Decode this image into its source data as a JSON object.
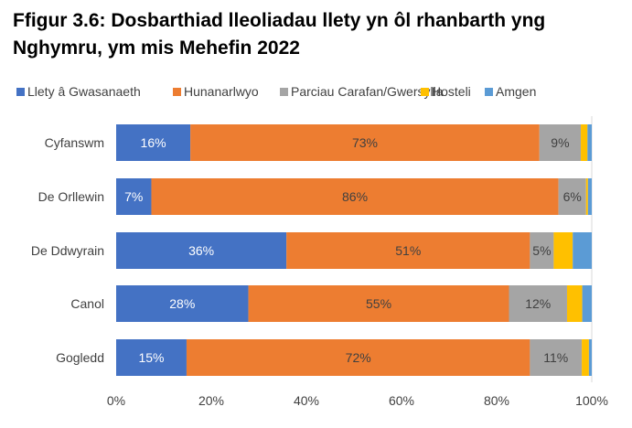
{
  "chart_data": {
    "type": "bar",
    "stacked": true,
    "orientation": "horizontal",
    "title": "Ffigur 3.6: Dosbarthiad lleoliadau llety yn ôl rhanbarth yng Nghymru, ym mis Mehefin 2022",
    "categories": [
      "Cyfanswm",
      "De Orllewin",
      "De Ddwyrain",
      "Canol",
      "Gogledd"
    ],
    "series": [
      {
        "name": "Llety â Gwasanaeth",
        "color": "#4472C4",
        "values": [
          15.6,
          7.4,
          35.8,
          27.8,
          14.8
        ]
      },
      {
        "name": "Hunanarlwyo",
        "color": "#ED7D31",
        "values": [
          73.4,
          85.6,
          51.2,
          54.8,
          72.2
        ]
      },
      {
        "name": "Parciau Carafan/Gwersylla",
        "color": "#A5A5A5",
        "values": [
          8.7,
          5.8,
          5.0,
          12.2,
          10.9
        ]
      },
      {
        "name": "Hosteli",
        "color": "#FFC000",
        "values": [
          1.4,
          0.4,
          4.0,
          3.2,
          1.5
        ]
      },
      {
        "name": "Amgen",
        "color": "#5B9BD5",
        "values": [
          0.9,
          0.8,
          4.0,
          2.0,
          0.6
        ]
      }
    ],
    "data_labels": [
      [
        "16%",
        "73%",
        "9%"
      ],
      [
        "7%",
        "86%",
        "6%"
      ],
      [
        "36%",
        "51%",
        "5%"
      ],
      [
        "28%",
        "55%",
        "12%"
      ],
      [
        "15%",
        "72%",
        "11%"
      ]
    ],
    "xticks": [
      "0%",
      "20%",
      "40%",
      "60%",
      "80%",
      "100%"
    ],
    "xlim": [
      0,
      100
    ],
    "legend": "top"
  }
}
